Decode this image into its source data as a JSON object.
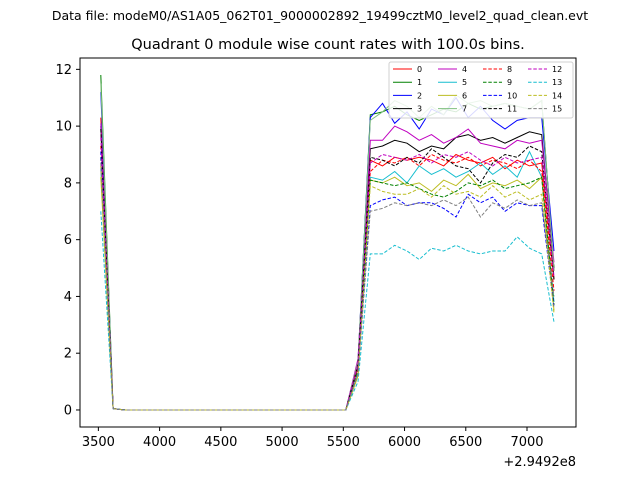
{
  "suptitle": "Data file: modeM0/AS1A05_062T01_9000002892_19499cztM0_level2_quad_clean.evt",
  "chart_data": {
    "type": "line",
    "title": "Quadrant 0 module wise count rates with 100.0s bins.",
    "xlabel": "",
    "ylabel": "",
    "x_offset_label": "+2.9492e8",
    "xlim": [
      3350,
      7400
    ],
    "ylim": [
      -0.6,
      12.4
    ],
    "x_ticks": [
      3500,
      4000,
      4500,
      5000,
      5500,
      6000,
      6500,
      7000
    ],
    "y_ticks": [
      0,
      2,
      4,
      6,
      8,
      10,
      12
    ],
    "grid": false,
    "legend_position": "top-right",
    "x": [
      3520,
      3620,
      3720,
      3820,
      3920,
      4020,
      4120,
      4220,
      4320,
      4420,
      4520,
      4620,
      4720,
      4820,
      4920,
      5020,
      5120,
      5220,
      5320,
      5420,
      5520,
      5620,
      5720,
      5820,
      5920,
      6020,
      6120,
      6220,
      6320,
      6420,
      6520,
      6620,
      6720,
      6820,
      6920,
      7020,
      7120,
      7220
    ],
    "series": [
      {
        "name": "0",
        "color": "#ff0000",
        "dash": "solid",
        "values": [
          10.3,
          0.05,
          0,
          0,
          0,
          0,
          0,
          0,
          0,
          0,
          0,
          0,
          0,
          0,
          0,
          0,
          0,
          0,
          0,
          0,
          0,
          1.5,
          8.8,
          8.6,
          8.9,
          8.8,
          8.9,
          8.8,
          8.6,
          9.0,
          8.8,
          8.7,
          8.9,
          8.5,
          8.8,
          8.6,
          8.7,
          4.6
        ]
      },
      {
        "name": "1",
        "color": "#008000",
        "dash": "solid",
        "values": [
          11.8,
          0.05,
          0,
          0,
          0,
          0,
          0,
          0,
          0,
          0,
          0,
          0,
          0,
          0,
          0,
          0,
          0,
          0,
          0,
          0,
          0,
          1.6,
          10.4,
          10.5,
          10.7,
          10.4,
          10.2,
          10.4,
          10.6,
          10.5,
          10.8,
          10.6,
          10.7,
          10.8,
          10.7,
          10.6,
          10.9,
          4.9
        ]
      },
      {
        "name": "2",
        "color": "#0000ff",
        "dash": "solid",
        "values": [
          11.2,
          0.05,
          0,
          0,
          0,
          0,
          0,
          0,
          0,
          0,
          0,
          0,
          0,
          0,
          0,
          0,
          0,
          0,
          0,
          0,
          0,
          1.7,
          10.3,
          10.8,
          10.1,
          10.5,
          9.9,
          10.6,
          10.4,
          11.0,
          10.3,
          10.7,
          10.2,
          9.9,
          10.2,
          10.3,
          10.3,
          5.6
        ]
      },
      {
        "name": "3",
        "color": "#000000",
        "dash": "solid",
        "values": [
          10.0,
          0.05,
          0,
          0,
          0,
          0,
          0,
          0,
          0,
          0,
          0,
          0,
          0,
          0,
          0,
          0,
          0,
          0,
          0,
          0,
          0,
          1.6,
          9.2,
          9.3,
          9.5,
          9.4,
          9.1,
          9.3,
          9.2,
          9.6,
          9.7,
          9.5,
          9.6,
          9.4,
          9.6,
          9.8,
          9.7,
          5.0
        ]
      },
      {
        "name": "4",
        "color": "#bf00bf",
        "dash": "solid",
        "values": [
          10.1,
          0.05,
          0,
          0,
          0,
          0,
          0,
          0,
          0,
          0,
          0,
          0,
          0,
          0,
          0,
          0,
          0,
          0,
          0,
          0,
          0,
          1.8,
          9.5,
          9.5,
          10.0,
          9.8,
          9.5,
          9.7,
          9.4,
          9.6,
          9.9,
          9.4,
          9.3,
          9.2,
          9.5,
          9.4,
          9.5,
          5.2
        ]
      },
      {
        "name": "5",
        "color": "#17becf",
        "dash": "solid",
        "values": [
          8.5,
          0.05,
          0,
          0,
          0,
          0,
          0,
          0,
          0,
          0,
          0,
          0,
          0,
          0,
          0,
          0,
          0,
          0,
          0,
          0,
          0,
          1.3,
          8.2,
          8.1,
          8.4,
          8.0,
          8.6,
          8.3,
          8.5,
          8.2,
          8.4,
          8.7,
          8.3,
          8.6,
          8.2,
          9.1,
          8.2,
          3.8
        ]
      },
      {
        "name": "6",
        "color": "#bcbd22",
        "dash": "solid",
        "values": [
          8.2,
          0.05,
          0,
          0,
          0,
          0,
          0,
          0,
          0,
          0,
          0,
          0,
          0,
          0,
          0,
          0,
          0,
          0,
          0,
          0,
          0,
          1.2,
          8.1,
          8.0,
          8.2,
          7.9,
          8.0,
          7.7,
          8.1,
          7.9,
          8.3,
          7.8,
          8.0,
          7.9,
          8.1,
          7.8,
          8.2,
          3.5
        ]
      },
      {
        "name": "7",
        "color": "#7fbf7f",
        "dash": "solid",
        "values": [
          11.5,
          0.05,
          0,
          0,
          0,
          0,
          0,
          0,
          0,
          0,
          0,
          0,
          0,
          0,
          0,
          0,
          0,
          0,
          0,
          0,
          0,
          1.7,
          10.2,
          10.5,
          10.9,
          10.7,
          10.3,
          10.7,
          10.4,
          11.1,
          10.8,
          10.9,
          10.7,
          10.8,
          10.7,
          10.6,
          10.9,
          4.9
        ]
      },
      {
        "name": "8",
        "color": "#ff0000",
        "dash": "dashed",
        "values": [
          9.3,
          0.05,
          0,
          0,
          0,
          0,
          0,
          0,
          0,
          0,
          0,
          0,
          0,
          0,
          0,
          0,
          0,
          0,
          0,
          0,
          0,
          1.5,
          8.4,
          8.8,
          8.7,
          8.9,
          8.6,
          9.0,
          8.8,
          8.7,
          8.9,
          8.6,
          8.8,
          8.7,
          8.5,
          8.8,
          8.4,
          4.2
        ]
      },
      {
        "name": "9",
        "color": "#008000",
        "dash": "dashed",
        "values": [
          8.9,
          0.05,
          0,
          0,
          0,
          0,
          0,
          0,
          0,
          0,
          0,
          0,
          0,
          0,
          0,
          0,
          0,
          0,
          0,
          0,
          0,
          1.4,
          8.1,
          8.0,
          7.9,
          8.0,
          7.8,
          7.6,
          7.5,
          7.7,
          8.0,
          7.9,
          8.1,
          7.8,
          7.9,
          8.0,
          8.2,
          3.7
        ]
      },
      {
        "name": "10",
        "color": "#0000ff",
        "dash": "dashed",
        "values": [
          9.1,
          0.05,
          0,
          0,
          0,
          0,
          0,
          0,
          0,
          0,
          0,
          0,
          0,
          0,
          0,
          0,
          0,
          0,
          0,
          0,
          0,
          1.3,
          7.2,
          7.4,
          7.5,
          7.2,
          7.3,
          7.3,
          7.1,
          6.8,
          7.6,
          7.3,
          7.5,
          7.0,
          7.3,
          7.2,
          7.2,
          3.6
        ]
      },
      {
        "name": "11",
        "color": "#000000",
        "dash": "dashed",
        "values": [
          9.9,
          0.05,
          0,
          0,
          0,
          0,
          0,
          0,
          0,
          0,
          0,
          0,
          0,
          0,
          0,
          0,
          0,
          0,
          0,
          0,
          0,
          1.6,
          8.9,
          8.8,
          8.6,
          8.9,
          8.7,
          9.2,
          8.9,
          8.6,
          8.5,
          8.0,
          8.7,
          9.0,
          8.9,
          9.3,
          9.1,
          4.6
        ]
      },
      {
        "name": "12",
        "color": "#bf00bf",
        "dash": "dashed",
        "values": [
          9.6,
          0.05,
          0,
          0,
          0,
          0,
          0,
          0,
          0,
          0,
          0,
          0,
          0,
          0,
          0,
          0,
          0,
          0,
          0,
          0,
          0,
          1.6,
          8.7,
          9.0,
          8.9,
          8.8,
          9.0,
          8.7,
          9.0,
          8.9,
          9.1,
          8.8,
          8.6,
          8.9,
          8.7,
          8.8,
          8.9,
          4.7
        ]
      },
      {
        "name": "13",
        "color": "#17becf",
        "dash": "dashed",
        "values": [
          7.0,
          0.05,
          0,
          0,
          0,
          0,
          0,
          0,
          0,
          0,
          0,
          0,
          0,
          0,
          0,
          0,
          0,
          0,
          0,
          0,
          0,
          1.0,
          5.5,
          5.5,
          5.8,
          5.6,
          5.3,
          5.7,
          5.6,
          5.8,
          5.6,
          5.5,
          5.6,
          5.6,
          6.1,
          5.7,
          5.5,
          3.1
        ]
      },
      {
        "name": "14",
        "color": "#bcbd22",
        "dash": "dashed",
        "values": [
          8.6,
          0.05,
          0,
          0,
          0,
          0,
          0,
          0,
          0,
          0,
          0,
          0,
          0,
          0,
          0,
          0,
          0,
          0,
          0,
          0,
          0,
          1.2,
          7.9,
          7.7,
          7.6,
          7.6,
          7.8,
          7.5,
          7.9,
          7.6,
          7.7,
          7.5,
          7.9,
          7.5,
          7.7,
          7.4,
          7.6,
          3.4
        ]
      },
      {
        "name": "15",
        "color": "#7f7f7f",
        "dash": "dashed",
        "values": [
          8.7,
          0.05,
          0,
          0,
          0,
          0,
          0,
          0,
          0,
          0,
          0,
          0,
          0,
          0,
          0,
          0,
          0,
          0,
          0,
          0,
          0,
          1.3,
          7.0,
          7.1,
          7.3,
          7.2,
          7.3,
          7.2,
          7.4,
          7.2,
          7.5,
          6.8,
          7.3,
          7.1,
          7.4,
          7.2,
          7.3,
          4.0
        ]
      }
    ]
  }
}
